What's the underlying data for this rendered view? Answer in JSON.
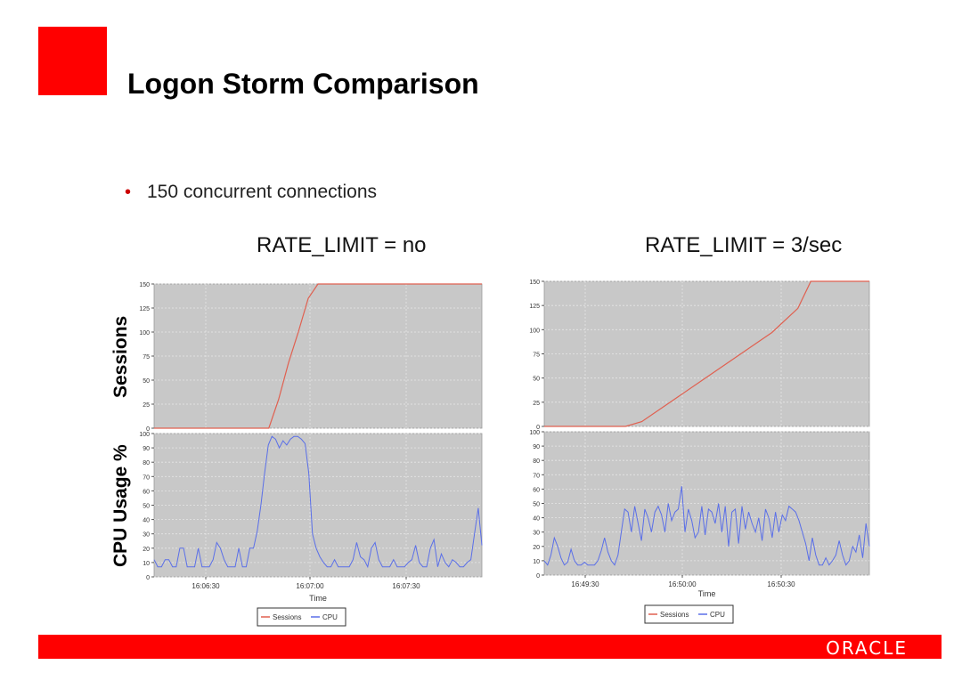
{
  "slide": {
    "title": "Logon Storm Comparison",
    "bullet": "150 concurrent connections",
    "accent_color": "#ff0000",
    "bullet_color": "#cc0000",
    "footer_logo": "ORACLE",
    "icons": {
      "brand_square": "red-square-logo",
      "bullet": "bullet-dot"
    }
  },
  "axis_titles": {
    "sessions": "Sessions",
    "cpu": "CPU Usage %"
  },
  "chart_data": [
    {
      "type": "line",
      "title": "RATE_LIMIT = no",
      "xlabel": "Time",
      "x_ticks": [
        "16:06:30",
        "16:07:00",
        "16:07:30"
      ],
      "legend": [
        "Sessions",
        "CPU"
      ],
      "sessions": {
        "ylabel": "Sessions",
        "ylim": [
          0,
          150
        ],
        "y_ticks": [
          0,
          25,
          50,
          75,
          100,
          125,
          150
        ],
        "color": "#e06050",
        "x": [
          0,
          35,
          38,
          41,
          44,
          47,
          50,
          100
        ],
        "y": [
          0,
          0,
          30,
          68,
          100,
          135,
          150,
          150
        ]
      },
      "cpu": {
        "ylabel": "CPU Usage %",
        "ylim": [
          0,
          100
        ],
        "y_ticks": [
          0,
          10,
          20,
          30,
          40,
          50,
          60,
          70,
          80,
          90,
          100
        ],
        "color": "#5a6fe8",
        "values": [
          12,
          7,
          7,
          12,
          12,
          7,
          7,
          20,
          20,
          7,
          7,
          7,
          20,
          7,
          7,
          7,
          12,
          24,
          20,
          12,
          7,
          7,
          7,
          20,
          7,
          7,
          20,
          20,
          32,
          50,
          72,
          92,
          98,
          96,
          90,
          95,
          92,
          96,
          98,
          98,
          96,
          93,
          72,
          30,
          20,
          14,
          10,
          7,
          7,
          12,
          7,
          7,
          7,
          7,
          12,
          24,
          14,
          12,
          7,
          20,
          24,
          12,
          7,
          7,
          7,
          12,
          7,
          7,
          7,
          10,
          12,
          22,
          10,
          7,
          7,
          20,
          26,
          7,
          16,
          10,
          7,
          12,
          10,
          7,
          7,
          10,
          12,
          30,
          48,
          22
        ]
      }
    },
    {
      "type": "line",
      "title": "RATE_LIMIT = 3/sec",
      "xlabel": "Time",
      "x_ticks": [
        "16:49:30",
        "16:50:00",
        "16:50:30"
      ],
      "legend": [
        "Sessions",
        "CPU"
      ],
      "sessions": {
        "ylabel": "Sessions",
        "ylim": [
          0,
          150
        ],
        "y_ticks": [
          0,
          25,
          50,
          75,
          100,
          125,
          150
        ],
        "color": "#e06050",
        "x": [
          0,
          25,
          30,
          40,
          50,
          60,
          70,
          78,
          82,
          100
        ],
        "y": [
          0,
          0,
          5,
          28,
          51,
          74,
          97,
          122,
          150,
          150
        ]
      },
      "cpu": {
        "ylabel": "CPU Usage %",
        "ylim": [
          0,
          100
        ],
        "y_ticks": [
          0,
          10,
          20,
          30,
          40,
          50,
          60,
          70,
          80,
          90,
          100
        ],
        "color": "#5a6fe8",
        "values": [
          10,
          7,
          14,
          26,
          20,
          12,
          7,
          9,
          18,
          10,
          7,
          7,
          9,
          7,
          7,
          7,
          10,
          17,
          26,
          16,
          10,
          7,
          14,
          30,
          46,
          44,
          30,
          48,
          36,
          24,
          46,
          40,
          30,
          44,
          48,
          42,
          30,
          50,
          38,
          44,
          46,
          62,
          30,
          46,
          38,
          26,
          30,
          48,
          28,
          46,
          44,
          36,
          50,
          30,
          48,
          20,
          44,
          46,
          22,
          48,
          32,
          44,
          36,
          30,
          40,
          24,
          46,
          40,
          26,
          44,
          30,
          42,
          38,
          48,
          46,
          44,
          38,
          30,
          22,
          10,
          26,
          14,
          7,
          7,
          12,
          7,
          10,
          14,
          24,
          14,
          7,
          10,
          20,
          16,
          28,
          12,
          36,
          20
        ]
      }
    }
  ]
}
